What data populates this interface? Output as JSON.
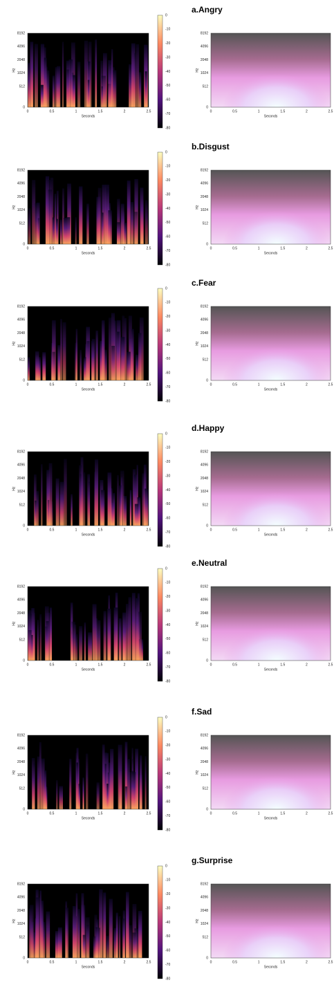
{
  "panels": [
    {
      "label": "a.Angry"
    },
    {
      "label": "b.Disgust"
    },
    {
      "label": "c.Fear"
    },
    {
      "label": "d.Happy"
    },
    {
      "label": "e.Neutral"
    },
    {
      "label": "f.Sad"
    },
    {
      "label": "g.Surprise"
    }
  ],
  "axes": {
    "y_ticks": [
      "8192",
      "4096",
      "2048",
      "1024",
      "512",
      "0"
    ],
    "x_ticks": [
      "0",
      "0.5",
      "1",
      "1.5",
      "2",
      "2.5"
    ],
    "x_label": "Seconds",
    "y_label": "Hz",
    "colorbar_ticks": [
      "0",
      "-10",
      "-20",
      "-30",
      "-40",
      "-50",
      "-60",
      "-70",
      "-80"
    ]
  }
}
